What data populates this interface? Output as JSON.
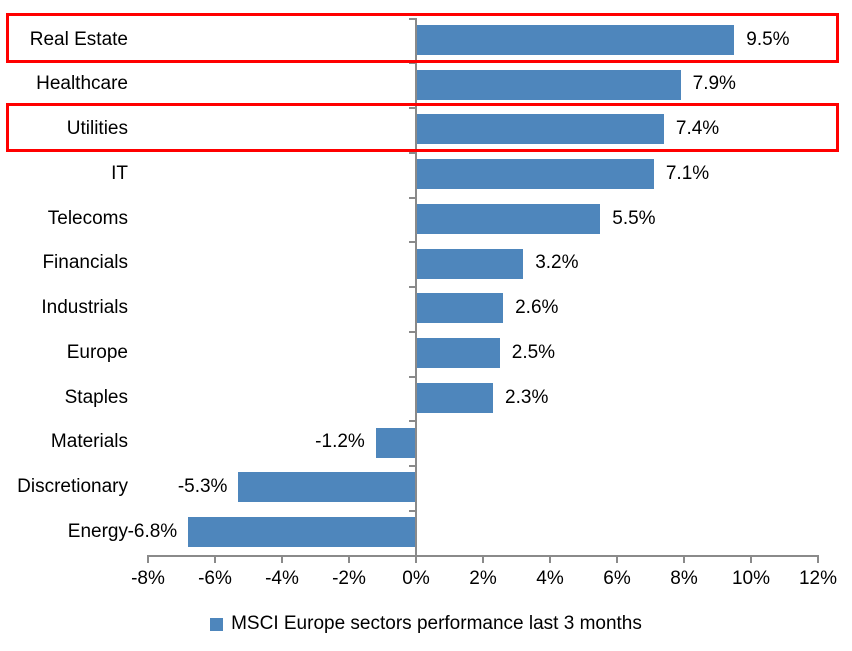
{
  "chart_data": {
    "type": "bar",
    "orientation": "horizontal",
    "title": "",
    "xlabel": "",
    "ylabel": "",
    "series_name": "MSCI Europe sectors performance last 3 months",
    "categories": [
      "Real Estate",
      "Healthcare",
      "Utilities",
      "IT",
      "Telecoms",
      "Financials",
      "Industrials",
      "Europe",
      "Staples",
      "Materials",
      "Discretionary",
      "Energy"
    ],
    "values": [
      9.5,
      7.9,
      7.4,
      7.1,
      5.5,
      3.2,
      2.6,
      2.5,
      2.3,
      -1.2,
      -5.3,
      -6.8
    ],
    "value_labels": [
      "9.5%",
      "7.9%",
      "7.4%",
      "7.1%",
      "5.5%",
      "3.2%",
      "2.6%",
      "2.5%",
      "2.3%",
      "-1.2%",
      "-5.3%",
      "-6.8%"
    ],
    "highlighted_categories": [
      "Real Estate",
      "Utilities"
    ],
    "xlim": [
      -8,
      12
    ],
    "x_tick_values": [
      -8,
      -6,
      -4,
      -2,
      0,
      2,
      4,
      6,
      8,
      10,
      12
    ],
    "x_tick_labels": [
      "-8%",
      "-6%",
      "-4%",
      "-2%",
      "0%",
      "2%",
      "4%",
      "6%",
      "8%",
      "10%",
      "12%"
    ],
    "grid": false,
    "legend_position": "bottom",
    "legend_label": "MSCI Europe sectors performance last 3 months",
    "bar_color": "#4e86bc",
    "highlight_color": "#ff0000",
    "axis_color": "#8a8a8a",
    "text_color": "#000000"
  }
}
